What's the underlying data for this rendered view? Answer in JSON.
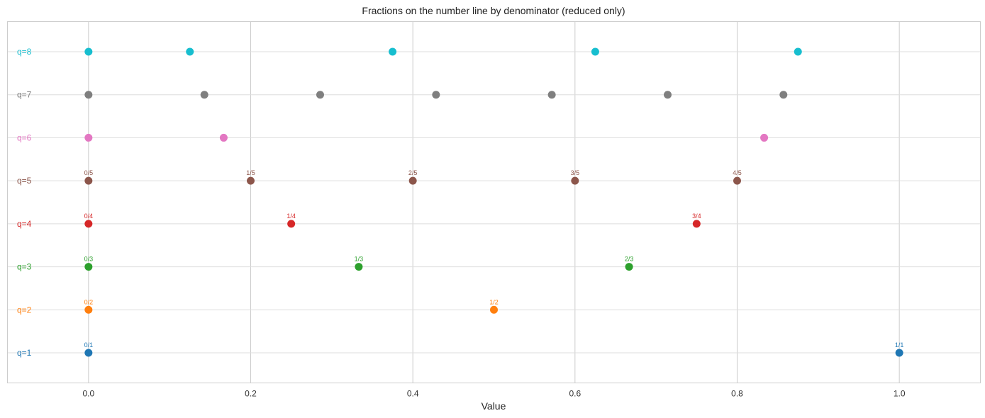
{
  "chart_data": {
    "type": "scatter",
    "title": "Fractions on the number line by denominator (reduced only)",
    "xlabel": "Value",
    "ylabel": "",
    "xlim": [
      -0.1,
      1.1
    ],
    "ylim": [
      0.3,
      8.7
    ],
    "x_ticks": [
      0.0,
      0.2,
      0.4,
      0.6,
      0.8,
      1.0
    ],
    "x_tick_labels": [
      "0.0",
      "0.2",
      "0.4",
      "0.6",
      "0.8",
      "1.0"
    ],
    "grid": true,
    "legend": null,
    "series": [
      {
        "name": "q=1",
        "q": 1,
        "color": "#1f77b4",
        "x": [
          0.0,
          1.0
        ],
        "labels": [
          "0/1",
          "1/1"
        ]
      },
      {
        "name": "q=2",
        "q": 2,
        "color": "#ff7f0e",
        "x": [
          0.0,
          0.5
        ],
        "labels": [
          "0/2",
          "1/2"
        ]
      },
      {
        "name": "q=3",
        "q": 3,
        "color": "#2ca02c",
        "x": [
          0.0,
          0.3333,
          0.6667
        ],
        "labels": [
          "0/3",
          "1/3",
          "2/3"
        ]
      },
      {
        "name": "q=4",
        "q": 4,
        "color": "#d62728",
        "x": [
          0.0,
          0.25,
          0.75
        ],
        "labels": [
          "0/4",
          "1/4",
          "3/4"
        ]
      },
      {
        "name": "q=5",
        "q": 5,
        "color": "#8c564b",
        "x": [
          0.0,
          0.2,
          0.4,
          0.6,
          0.8
        ],
        "labels": [
          "0/5",
          "1/5",
          "2/5",
          "3/5",
          "4/5"
        ]
      },
      {
        "name": "q=6",
        "q": 6,
        "color": "#e377c2",
        "x": [
          0.0,
          0.1667,
          0.8333
        ],
        "labels": []
      },
      {
        "name": "q=7",
        "q": 7,
        "color": "#7f7f7f",
        "x": [
          0.0,
          0.1429,
          0.2857,
          0.4286,
          0.5714,
          0.7143,
          0.8571
        ],
        "labels": []
      },
      {
        "name": "q=8",
        "q": 8,
        "color": "#17becf",
        "x": [
          0.0,
          0.125,
          0.375,
          0.625,
          0.875
        ],
        "labels": []
      }
    ]
  }
}
